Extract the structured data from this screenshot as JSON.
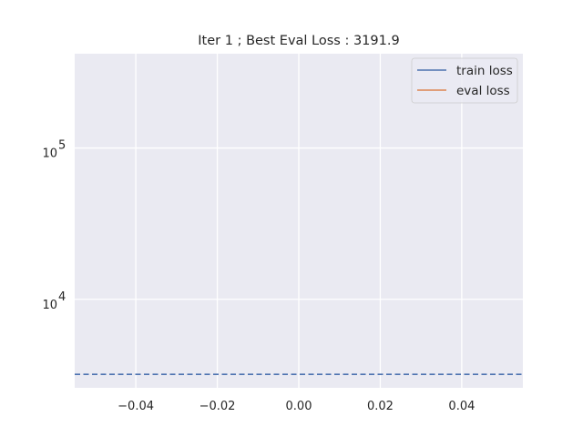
{
  "chart_data": {
    "type": "line",
    "title": "Iter 1 ; Best Eval Loss : 3191.9",
    "xlabel": "",
    "ylabel": "",
    "xlim": [
      -0.055,
      0.055
    ],
    "ylim": [
      2600,
      420000
    ],
    "yscale": "log",
    "grid": true,
    "legend_position": "top-right",
    "x_ticks": [
      {
        "value": -0.04,
        "label": "−0.04"
      },
      {
        "value": -0.02,
        "label": "−0.02"
      },
      {
        "value": 0.0,
        "label": "0.00"
      },
      {
        "value": 0.02,
        "label": "0.02"
      },
      {
        "value": 0.04,
        "label": "0.04"
      }
    ],
    "y_ticks": [
      {
        "value": 10000,
        "base": "10",
        "exp": "4"
      },
      {
        "value": 100000,
        "base": "10",
        "exp": "5"
      }
    ],
    "series": [
      {
        "name": "train loss",
        "color": "#4c72b0",
        "x": [
          0
        ],
        "y": [
          3191.9
        ],
        "style": "solid"
      },
      {
        "name": "eval loss",
        "color": "#dd8452",
        "x": [
          0
        ],
        "y": [
          3191.9
        ],
        "style": "solid"
      }
    ],
    "reference_lines": [
      {
        "orientation": "horizontal",
        "y": 3191.9,
        "color": "#4c72b0",
        "style": "dashed"
      }
    ]
  }
}
